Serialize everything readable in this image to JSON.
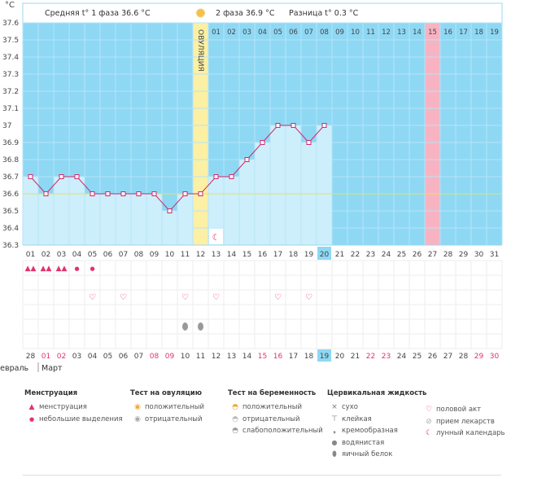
{
  "chart_data": {
    "type": "line",
    "y_unit": "°C",
    "ylim": [
      36.3,
      37.6
    ],
    "y_ticks": [
      "37.6",
      "37.5",
      "37.4",
      "37.3",
      "37.2",
      "37.1",
      "37",
      "36.9",
      "36.8",
      "36.7",
      "36.6",
      "36.5",
      "36.4",
      "36.3"
    ],
    "cycle_day_labels": [
      "01",
      "02",
      "03",
      "04",
      "05",
      "06",
      "07",
      "08",
      "09",
      "10",
      "11",
      "12",
      "13",
      "14",
      "15",
      "16",
      "17",
      "18",
      "19",
      "20",
      "21",
      "22",
      "23",
      "24",
      "25",
      "26",
      "27",
      "28",
      "29",
      "30",
      "31"
    ],
    "temperatures": [
      36.7,
      36.6,
      36.7,
      36.7,
      36.6,
      36.6,
      36.6,
      36.6,
      36.6,
      36.5,
      36.6,
      36.6,
      36.7,
      36.7,
      36.8,
      36.9,
      37.0,
      37.0,
      36.9,
      37.0
    ],
    "coverline": 36.6,
    "current_cycle_day": 20,
    "ovulation_cycle_day": 12,
    "ovulation_label": "ОВУЛЯЦИЯ",
    "expected_period_day": 15,
    "phase2_day_labels": [
      "01",
      "02",
      "03",
      "04",
      "05",
      "06",
      "07",
      "08",
      "09",
      "10",
      "11",
      "12",
      "13",
      "14",
      "15",
      "16",
      "17",
      "18",
      "19"
    ],
    "phase1_summary": {
      "label": "Средняя t° 1 фаза",
      "value": "36.6 °C"
    },
    "phase2_summary": {
      "label": "2 фаза",
      "value": "36.9 °C"
    },
    "difference_summary": {
      "label": "Разница t°",
      "value": "0.3 °C"
    },
    "calendar_dates": [
      "28",
      "01",
      "02",
      "03",
      "04",
      "05",
      "06",
      "07",
      "08",
      "09",
      "10",
      "11",
      "12",
      "13",
      "14",
      "15",
      "16",
      "17",
      "18",
      "19",
      "20",
      "21",
      "22",
      "23",
      "24",
      "25",
      "26",
      "27",
      "28",
      "29",
      "30"
    ],
    "calendar_red_indices": [
      1,
      2,
      8,
      9,
      15,
      16,
      22,
      23,
      29,
      30
    ],
    "calendar_today_index": 19,
    "months": [
      "Февраль",
      "Март"
    ],
    "marks": {
      "menstruation_large": [
        1,
        2,
        3
      ],
      "menstruation_small": [
        4,
        5
      ],
      "intercourse": [
        5,
        7,
        11,
        13,
        17,
        19
      ],
      "egg_white": [
        11,
        12
      ],
      "moon": [
        13
      ]
    }
  },
  "legend": {
    "menstruation": {
      "title": "Менструация",
      "items": [
        "менструация",
        "небольшие выделения"
      ]
    },
    "ovulation_test": {
      "title": "Тест на овуляцию",
      "items": [
        "положительный",
        "отрицательный"
      ]
    },
    "pregnancy_test": {
      "title": "Тест на беременность",
      "items": [
        "положительный",
        "отрицательный",
        "слабоположительный"
      ]
    },
    "cervical_fluid": {
      "title": "Цервикальная жидкость",
      "items": [
        "сухо",
        "клейкая",
        "кремообразная",
        "водянистая",
        "яичный белок"
      ]
    },
    "other": {
      "items": [
        "половой акт",
        "прием лекарств",
        "лунный календарь"
      ]
    }
  },
  "colors": {
    "sky": "#8ed8f4",
    "fill": "#cdeefb",
    "line": "#d0286c",
    "ovulation": "#fbf0a4",
    "period": "#f8b3c3",
    "today": "#8ed8f4"
  }
}
